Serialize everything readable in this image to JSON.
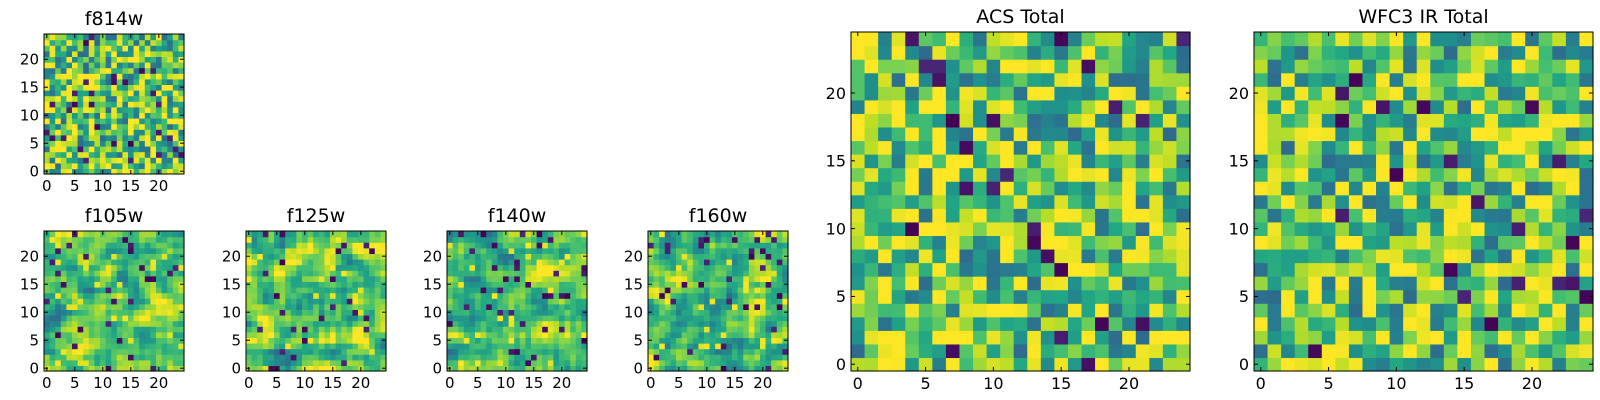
{
  "chart_data": [
    {
      "type": "heatmap",
      "title": "f814w",
      "grid_size": [
        25,
        25
      ],
      "xlim": [
        0,
        24
      ],
      "ylim": [
        0,
        24
      ],
      "xticks": [
        0,
        5,
        10,
        15,
        20
      ],
      "yticks": [
        0,
        5,
        10,
        15,
        20
      ],
      "colormap": "viridis",
      "values_note": "per-pixel noise field"
    },
    {
      "type": "heatmap",
      "title": "f105w",
      "grid_size": [
        25,
        25
      ],
      "xlim": [
        0,
        24
      ],
      "ylim": [
        0,
        24
      ],
      "xticks": [
        0,
        5,
        10,
        15,
        20
      ],
      "yticks": [
        0,
        5,
        10,
        15,
        20
      ],
      "colormap": "viridis"
    },
    {
      "type": "heatmap",
      "title": "f125w",
      "grid_size": [
        25,
        25
      ],
      "xlim": [
        0,
        24
      ],
      "ylim": [
        0,
        24
      ],
      "xticks": [
        0,
        5,
        10,
        15,
        20
      ],
      "yticks": [
        0,
        5,
        10,
        15,
        20
      ],
      "colormap": "viridis"
    },
    {
      "type": "heatmap",
      "title": "f140w",
      "grid_size": [
        25,
        25
      ],
      "xlim": [
        0,
        24
      ],
      "ylim": [
        0,
        24
      ],
      "xticks": [
        0,
        5,
        10,
        15,
        20
      ],
      "yticks": [
        0,
        5,
        10,
        15,
        20
      ],
      "colormap": "viridis"
    },
    {
      "type": "heatmap",
      "title": "f160w",
      "grid_size": [
        25,
        25
      ],
      "xlim": [
        0,
        24
      ],
      "ylim": [
        0,
        24
      ],
      "xticks": [
        0,
        5,
        10,
        15,
        20
      ],
      "yticks": [
        0,
        5,
        10,
        15,
        20
      ],
      "colormap": "viridis"
    },
    {
      "type": "heatmap",
      "title": "ACS Total",
      "grid_size": [
        25,
        25
      ],
      "xlim": [
        0,
        24
      ],
      "ylim": [
        0,
        24
      ],
      "xticks": [
        0,
        5,
        10,
        15,
        20
      ],
      "yticks": [
        0,
        5,
        10,
        15,
        20
      ],
      "colormap": "viridis"
    },
    {
      "type": "heatmap",
      "title": "WFC3 IR Total",
      "grid_size": [
        25,
        25
      ],
      "xlim": [
        0,
        24
      ],
      "ylim": [
        0,
        24
      ],
      "xticks": [
        0,
        5,
        10,
        15,
        20
      ],
      "yticks": [
        0,
        5,
        10,
        15,
        20
      ],
      "colormap": "viridis"
    }
  ]
}
